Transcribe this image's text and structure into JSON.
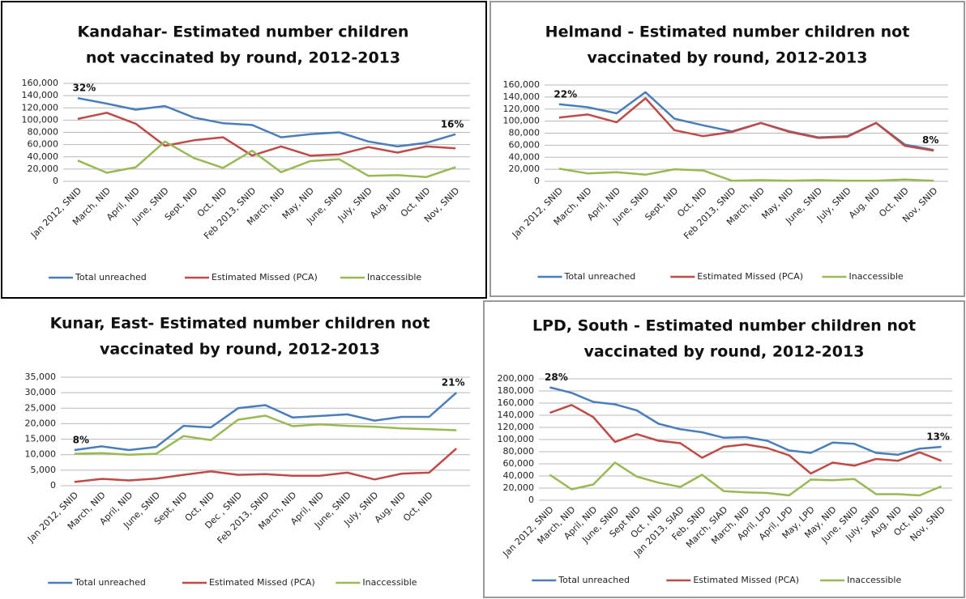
{
  "chart_data": [
    {
      "type": "line",
      "title": [
        "Kandahar- Estimated  number children",
        "not vaccinated by round, 2012-2013"
      ],
      "categories": [
        "Jan 2012, SNID",
        "March, NID",
        "April, NID",
        "June, SNID",
        "Sept, NID",
        "Oct, NID",
        "Feb 2013, SNID",
        "March, NID",
        "May, NID",
        "June, SNID",
        "July, SNID",
        "Aug, NID",
        "Oct, NID",
        "Nov, SNID"
      ],
      "series": [
        {
          "name": "Total unreached",
          "color": "#4a7ebb",
          "values": [
            136000,
            127000,
            117000,
            123000,
            104000,
            95000,
            92000,
            72000,
            77000,
            80000,
            65000,
            57000,
            63000,
            77000
          ]
        },
        {
          "name": "Estimated Missed (PCA)",
          "color": "#be4b48",
          "values": [
            102000,
            112000,
            94000,
            58000,
            67000,
            72000,
            42000,
            57000,
            42000,
            44000,
            56000,
            47000,
            57000,
            54000
          ]
        },
        {
          "name": "Inaccessible",
          "color": "#98b954",
          "values": [
            34000,
            14000,
            23000,
            65000,
            38000,
            22000,
            50000,
            15000,
            33000,
            36000,
            9000,
            10000,
            7000,
            23000
          ]
        }
      ],
      "annotations": [
        "32%",
        "16%"
      ],
      "ylim": [
        0,
        160000
      ],
      "yticks": [
        0,
        {
          "value": 20000,
          "label": "20,000"
        },
        {
          "value": 40000,
          "label": "40,000"
        },
        {
          "value": 60000,
          "label": "60,000"
        },
        {
          "value": 80000,
          "label": "80,000"
        },
        {
          "value": 100000,
          "label": "100,000"
        },
        {
          "value": 120000,
          "label": "120,000"
        },
        {
          "value": 140000,
          "label": "140,000"
        },
        {
          "value": 160000,
          "label": "160,000"
        }
      ],
      "grid": true,
      "legend": "bottom"
    },
    {
      "type": "line",
      "title": [
        "Helmand - Estimated number children not",
        "vaccinated by round, 2012-2013"
      ],
      "categories": [
        "Jan 2012, SNID",
        "March, NID",
        "April, NID",
        "June, SNID",
        "Sept, NID",
        "Oct, NID",
        "Feb 2013, SNID",
        "March, NID",
        "May, NID",
        "June, SNID",
        "July, SNID",
        "Aug, NID",
        "Oct, NID",
        "Nov, SNID"
      ],
      "series": [
        {
          "name": "Total unreached",
          "color": "#4a7ebb",
          "values": [
            128000,
            123000,
            113000,
            148000,
            104000,
            93000,
            83000,
            97000,
            83000,
            73000,
            75000,
            97000,
            61000,
            52000
          ]
        },
        {
          "name": "Estimated Missed (PCA)",
          "color": "#be4b48",
          "values": [
            106000,
            111000,
            98000,
            138000,
            85000,
            75000,
            82000,
            97000,
            82000,
            72000,
            74000,
            97000,
            59000,
            51000
          ]
        },
        {
          "name": "Inaccessible",
          "color": "#98b954",
          "values": [
            21000,
            13000,
            15000,
            11000,
            20000,
            18000,
            1000,
            2000,
            1000,
            2000,
            1000,
            1000,
            3000,
            1000
          ]
        }
      ],
      "annotations": [
        "22%",
        "8%"
      ],
      "ylim": [
        0,
        160000
      ],
      "yticks": [
        0,
        {
          "value": 20000,
          "label": "20,000"
        },
        {
          "value": 40000,
          "label": "40,000"
        },
        {
          "value": 60000,
          "label": "60,000"
        },
        {
          "value": 80000,
          "label": "80,000"
        },
        {
          "value": 100000,
          "label": "100,000"
        },
        {
          "value": 120000,
          "label": "120,000"
        },
        {
          "value": 140000,
          "label": "140,000"
        },
        {
          "value": 160000,
          "label": "160,000"
        }
      ],
      "grid": true,
      "legend": "bottom"
    },
    {
      "type": "line",
      "title": [
        "Kunar, East- Estimated number children not",
        "vaccinated by round, 2012-2013"
      ],
      "categories": [
        "Jan 2012, SNID",
        "March, NID",
        "April, NID",
        "June, SNID",
        "Sept, NID",
        "Oct, NID",
        "Dec , SNID",
        "Feb 2013, SNID",
        "March, NID",
        "April, NID",
        "June, SNID",
        "July, SNID",
        "Aug, NID",
        "Oct, NID",
        null
      ],
      "series": [
        {
          "name": "Total unreached",
          "color": "#4a7ebb",
          "values": [
            11500,
            12700,
            11500,
            12500,
            19300,
            18800,
            25000,
            26000,
            22000,
            22500,
            23000,
            21000,
            22200,
            22200,
            30000
          ]
        },
        {
          "name": "Estimated Missed (PCA)",
          "color": "#be4b48",
          "values": [
            1200,
            2200,
            1700,
            2300,
            3500,
            4600,
            3500,
            3700,
            3200,
            3200,
            4200,
            2000,
            3900,
            4200,
            12000
          ]
        },
        {
          "name": "Inaccessible",
          "color": "#98b954",
          "values": [
            10300,
            10500,
            10000,
            10300,
            16000,
            14700,
            21300,
            22600,
            19200,
            19800,
            19300,
            19000,
            18500,
            18200,
            17900
          ]
        }
      ],
      "annotations": [
        "8%",
        "21%"
      ],
      "ylim": [
        0,
        35000
      ],
      "yticks": [
        0,
        {
          "value": 5000,
          "label": "5,000"
        },
        {
          "value": 10000,
          "label": "10,000"
        },
        {
          "value": 15000,
          "label": "15,000"
        },
        {
          "value": 20000,
          "label": "20,000"
        },
        {
          "value": 25000,
          "label": "25,000"
        },
        {
          "value": 30000,
          "label": "30,000"
        },
        {
          "value": 35000,
          "label": "35,000"
        }
      ],
      "grid": true,
      "legend": "bottom"
    },
    {
      "type": "line",
      "title": [
        "LPD, South - Estimated number children not",
        "vaccinated by round, 2012-2013"
      ],
      "categories": [
        "Jan 2012, SNID",
        "March, NID",
        "April, NID",
        "June, SNID",
        "Sept NID",
        "Oct , NID",
        "Jan 2013, SIAD",
        "Feb, SNID",
        "March, SIAD",
        "March, NID",
        "April, LPD",
        "April, LPD",
        "May, LPD",
        "May, NID",
        "June, SNID",
        "July, SNID",
        "Aug, NID",
        "Oct, NID",
        "Nov, SNID"
      ],
      "series": [
        {
          "name": "Total unreached",
          "color": "#4a7ebb",
          "values": [
            186000,
            177000,
            162000,
            158000,
            148000,
            126000,
            117000,
            112000,
            103000,
            104000,
            98000,
            82000,
            78000,
            95000,
            93000,
            78000,
            75000,
            85000,
            88000
          ]
        },
        {
          "name": "Estimated Missed (PCA)",
          "color": "#be4b48",
          "values": [
            144000,
            157000,
            137000,
            96000,
            109000,
            98000,
            94000,
            70000,
            88000,
            92000,
            86000,
            74000,
            44000,
            62000,
            57000,
            68000,
            65000,
            79000,
            65000
          ]
        },
        {
          "name": "Inaccessible",
          "color": "#98b954",
          "values": [
            42000,
            18000,
            26000,
            62000,
            39000,
            29000,
            22000,
            42000,
            15000,
            13000,
            12000,
            8000,
            34000,
            33000,
            35000,
            10000,
            10000,
            8000,
            23000
          ]
        }
      ],
      "annotations": [
        "28%",
        "13%"
      ],
      "ylim": [
        0,
        200000
      ],
      "yticks": [
        0,
        {
          "value": 20000,
          "label": "20,000"
        },
        {
          "value": 40000,
          "label": "40,000"
        },
        {
          "value": 60000,
          "label": "60,000"
        },
        {
          "value": 80000,
          "label": "80,000"
        },
        {
          "value": 100000,
          "label": "100,000"
        },
        {
          "value": 120000,
          "label": "120,000"
        },
        {
          "value": 140000,
          "label": "140,000"
        },
        {
          "value": 160000,
          "label": "160,000"
        },
        {
          "value": 180000,
          "label": "180,000"
        },
        {
          "value": 200000,
          "label": "200,000"
        }
      ],
      "grid": true,
      "legend": "bottom"
    }
  ]
}
